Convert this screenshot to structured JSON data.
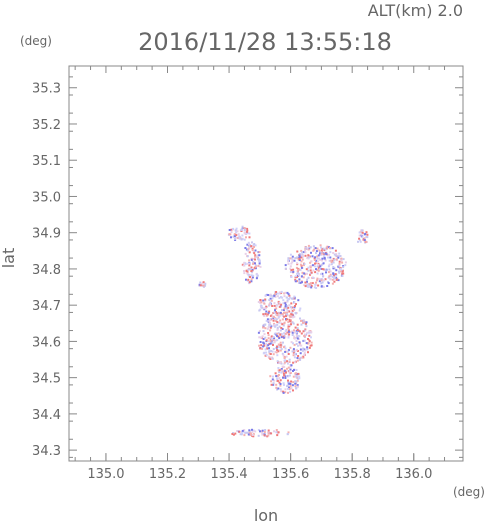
{
  "header": {
    "alt_label": "ALT(km) 2.0",
    "timestamp": "2016/11/28 13:55:18"
  },
  "chart_data": {
    "type": "heatmap",
    "title": "2016/11/28 13:55:18",
    "xlabel": "lon",
    "ylabel": "lat",
    "x_unit": "(deg)",
    "y_unit": "(deg)",
    "xlim": [
      134.88,
      136.16
    ],
    "ylim": [
      34.27,
      35.36
    ],
    "x_ticks": [
      "135.0",
      "135.2",
      "135.4",
      "135.6",
      "135.8",
      "136.0"
    ],
    "y_ticks": [
      "34.3",
      "34.4",
      "34.5",
      "34.6",
      "34.7",
      "34.8",
      "34.9",
      "35.0",
      "35.1",
      "35.2",
      "35.3"
    ],
    "grid": false,
    "colors": {
      "positive": "#f07a7a",
      "negative": "#7a7ae8",
      "neutral": "#c8c8f0",
      "axis": "#888888"
    },
    "echo_regions": [
      {
        "lon": 135.43,
        "lat": 34.9,
        "extent_lon": 0.04,
        "extent_lat": 0.02
      },
      {
        "lon": 135.47,
        "lat": 34.82,
        "extent_lon": 0.03,
        "extent_lat": 0.06
      },
      {
        "lon": 135.68,
        "lat": 34.81,
        "extent_lon": 0.1,
        "extent_lat": 0.06
      },
      {
        "lon": 135.83,
        "lat": 34.89,
        "extent_lon": 0.02,
        "extent_lat": 0.02
      },
      {
        "lon": 135.31,
        "lat": 34.76,
        "extent_lon": 0.01,
        "extent_lat": 0.01
      },
      {
        "lon": 135.56,
        "lat": 34.7,
        "extent_lon": 0.07,
        "extent_lat": 0.04
      },
      {
        "lon": 135.58,
        "lat": 34.61,
        "extent_lon": 0.09,
        "extent_lat": 0.07
      },
      {
        "lon": 135.58,
        "lat": 34.5,
        "extent_lon": 0.05,
        "extent_lat": 0.04
      },
      {
        "lon": 135.5,
        "lat": 34.35,
        "extent_lon": 0.1,
        "extent_lat": 0.01
      }
    ]
  }
}
